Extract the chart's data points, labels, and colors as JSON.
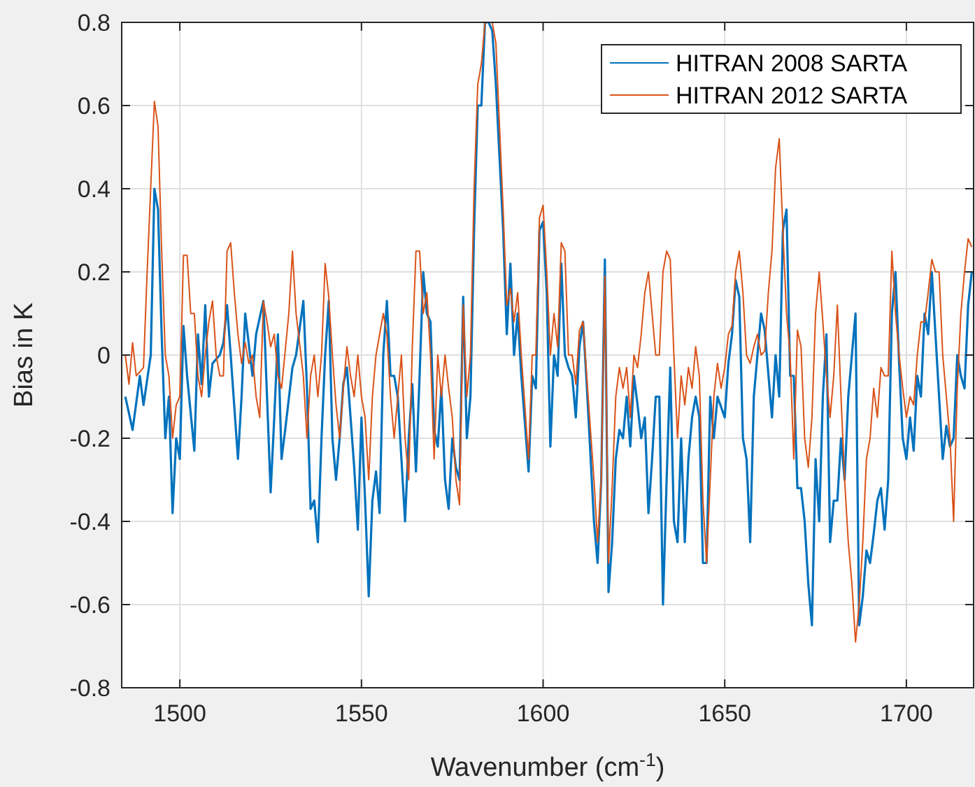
{
  "chart_data": {
    "type": "line",
    "xlabel": "Wavenumber (cm$^{-1}$)",
    "ylabel": "Bias in K",
    "xlim": [
      1484,
      1718.5
    ],
    "ylim": [
      -0.8,
      0.8
    ],
    "xticks": [
      1500,
      1550,
      1600,
      1650,
      1700
    ],
    "yticks": [
      -0.8,
      -0.6,
      -0.4,
      -0.2,
      0,
      0.2,
      0.4,
      0.6,
      0.8
    ],
    "grid": true,
    "legend": "top right",
    "line_style": "solid",
    "marker": "none",
    "series": [
      {
        "name": "HITRAN 2008 SARTA",
        "color": "#0072bd",
        "x": [
          1485,
          1487,
          1489,
          1490,
          1492,
          1493,
          1494,
          1495,
          1496,
          1497,
          1498,
          1499,
          1500,
          1501,
          1502,
          1504,
          1505,
          1506,
          1507,
          1508,
          1509,
          1511,
          1512,
          1513,
          1514,
          1516,
          1517,
          1518,
          1520,
          1521,
          1523,
          1525,
          1526,
          1527,
          1528,
          1529,
          1531,
          1532,
          1534,
          1535,
          1536,
          1537,
          1538,
          1539,
          1540,
          1541,
          1542,
          1543,
          1544,
          1545,
          1546,
          1548,
          1549,
          1550,
          1551,
          1552,
          1553,
          1554,
          1555,
          1556,
          1557,
          1558,
          1559,
          1560,
          1561,
          1562,
          1563,
          1564,
          1565,
          1566,
          1567,
          1568,
          1569,
          1570,
          1571,
          1572,
          1573,
          1574,
          1575,
          1576,
          1577,
          1578,
          1579,
          1580,
          1581,
          1582,
          1583,
          1584,
          1585,
          1586,
          1587,
          1589,
          1590,
          1591,
          1592,
          1593,
          1594,
          1596,
          1597,
          1598,
          1599,
          1600,
          1601,
          1602,
          1603,
          1604,
          1605,
          1606,
          1607,
          1608,
          1609,
          1610,
          1611,
          1612,
          1614,
          1615,
          1616,
          1617,
          1618,
          1619,
          1620,
          1621,
          1622,
          1623,
          1624,
          1625,
          1626,
          1627,
          1628,
          1629,
          1630,
          1631,
          1632,
          1633,
          1634,
          1635,
          1636,
          1637,
          1638,
          1639,
          1640,
          1641,
          1642,
          1643,
          1644,
          1645,
          1646,
          1647,
          1648,
          1650,
          1651,
          1652,
          1653,
          1654,
          1655,
          1656,
          1657,
          1658,
          1660,
          1661,
          1663,
          1664,
          1665,
          1666,
          1667,
          1668,
          1669,
          1670,
          1671,
          1672,
          1673,
          1674,
          1675,
          1676,
          1677,
          1678,
          1679,
          1680,
          1681,
          1682,
          1683,
          1684,
          1686,
          1687,
          1688,
          1689,
          1690,
          1691,
          1692,
          1693,
          1694,
          1695,
          1696,
          1697,
          1698,
          1699,
          1700,
          1701,
          1702,
          1703,
          1704,
          1705,
          1706,
          1707,
          1708,
          1710,
          1711,
          1712,
          1713,
          1714,
          1715,
          1716,
          1717,
          1718
        ],
        "values": [
          -0.1,
          -0.18,
          -0.05,
          -0.12,
          0.0,
          0.4,
          0.35,
          0.05,
          -0.2,
          -0.1,
          -0.38,
          -0.2,
          -0.25,
          0.07,
          -0.05,
          -0.23,
          0.05,
          -0.07,
          0.12,
          -0.1,
          -0.02,
          0.0,
          0.03,
          0.12,
          0.0,
          -0.25,
          -0.1,
          0.1,
          -0.05,
          0.05,
          0.13,
          -0.33,
          -0.15,
          0.05,
          -0.25,
          -0.18,
          -0.03,
          0.0,
          0.13,
          -0.08,
          -0.37,
          -0.35,
          -0.45,
          -0.2,
          0.0,
          0.13,
          -0.2,
          -0.3,
          -0.2,
          -0.07,
          -0.03,
          -0.27,
          -0.42,
          -0.15,
          -0.35,
          -0.58,
          -0.35,
          -0.28,
          -0.38,
          0.0,
          0.13,
          -0.05,
          -0.05,
          -0.1,
          -0.25,
          -0.4,
          -0.2,
          -0.07,
          -0.28,
          -0.05,
          0.2,
          0.1,
          0.08,
          -0.18,
          -0.22,
          -0.08,
          -0.3,
          -0.37,
          -0.2,
          -0.27,
          -0.3,
          0.14,
          -0.2,
          -0.1,
          0.3,
          0.6,
          0.6,
          0.8,
          0.8,
          0.78,
          0.65,
          0.3,
          0.05,
          0.22,
          0.0,
          0.1,
          -0.05,
          -0.28,
          -0.05,
          -0.08,
          0.3,
          0.32,
          0.15,
          -0.22,
          0.0,
          -0.05,
          0.22,
          0.0,
          -0.03,
          -0.05,
          -0.15,
          0.02,
          0.08,
          -0.07,
          -0.4,
          -0.5,
          -0.3,
          0.23,
          -0.57,
          -0.45,
          -0.25,
          -0.18,
          -0.2,
          -0.1,
          -0.22,
          -0.05,
          -0.12,
          -0.2,
          -0.15,
          -0.38,
          -0.25,
          -0.1,
          -0.1,
          -0.6,
          -0.3,
          -0.03,
          -0.4,
          -0.45,
          -0.2,
          -0.45,
          -0.25,
          -0.15,
          -0.1,
          -0.15,
          -0.5,
          -0.5,
          -0.1,
          -0.2,
          -0.1,
          -0.15,
          -0.02,
          0.05,
          0.18,
          0.14,
          -0.2,
          -0.25,
          -0.45,
          -0.1,
          0.1,
          0.06,
          -0.15,
          0.0,
          -0.1,
          0.3,
          0.35,
          -0.05,
          -0.05,
          -0.32,
          -0.32,
          -0.4,
          -0.55,
          -0.65,
          -0.25,
          -0.4,
          -0.1,
          0.05,
          -0.45,
          -0.35,
          -0.35,
          -0.2,
          -0.3,
          -0.1,
          0.1,
          -0.65,
          -0.58,
          -0.47,
          -0.5,
          -0.43,
          -0.35,
          -0.32,
          -0.42,
          -0.3,
          0.1,
          0.2,
          -0.02,
          -0.2,
          -0.25,
          -0.15,
          -0.23,
          -0.05,
          -0.1,
          0.1,
          0.05,
          0.2,
          0.05,
          -0.25,
          -0.17,
          -0.22,
          -0.2,
          0.0,
          -0.05,
          -0.08,
          0.12,
          0.2
        ]
      },
      {
        "name": "HITRAN 2012 SARTA",
        "color": "#d95319",
        "x": [
          1485,
          1486,
          1487,
          1488,
          1490,
          1491,
          1493,
          1494,
          1495,
          1496,
          1497,
          1498,
          1499,
          1500,
          1501,
          1502,
          1503,
          1504,
          1505,
          1506,
          1507,
          1508,
          1509,
          1510,
          1511,
          1512,
          1513,
          1514,
          1515,
          1516,
          1517,
          1518,
          1519,
          1520,
          1521,
          1522,
          1523,
          1524,
          1525,
          1526,
          1527,
          1528,
          1530,
          1531,
          1532,
          1534,
          1535,
          1536,
          1537,
          1538,
          1539,
          1540,
          1541,
          1542,
          1543,
          1544,
          1545,
          1546,
          1547,
          1548,
          1549,
          1550,
          1551,
          1552,
          1553,
          1554,
          1555,
          1556,
          1557,
          1558,
          1559,
          1560,
          1561,
          1562,
          1563,
          1564,
          1565,
          1566,
          1567,
          1568,
          1569,
          1570,
          1571,
          1572,
          1573,
          1574,
          1575,
          1576,
          1577,
          1578,
          1579,
          1580,
          1581,
          1582,
          1583,
          1584,
          1586,
          1587,
          1589,
          1590,
          1591,
          1592,
          1593,
          1594,
          1596,
          1597,
          1598,
          1599,
          1600,
          1601,
          1602,
          1603,
          1604,
          1605,
          1606,
          1607,
          1608,
          1609,
          1610,
          1611,
          1612,
          1614,
          1615,
          1616,
          1617,
          1618,
          1619,
          1620,
          1621,
          1622,
          1623,
          1624,
          1625,
          1626,
          1627,
          1628,
          1629,
          1630,
          1631,
          1632,
          1633,
          1634,
          1635,
          1636,
          1637,
          1638,
          1639,
          1640,
          1641,
          1642,
          1643,
          1644,
          1645,
          1646,
          1647,
          1648,
          1649,
          1650,
          1651,
          1652,
          1653,
          1654,
          1655,
          1656,
          1657,
          1658,
          1659,
          1660,
          1661,
          1662,
          1663,
          1664,
          1665,
          1666,
          1667,
          1668,
          1669,
          1670,
          1671,
          1672,
          1673,
          1674,
          1675,
          1676,
          1677,
          1678,
          1679,
          1680,
          1681,
          1682,
          1683,
          1684,
          1685,
          1686,
          1687,
          1688,
          1689,
          1690,
          1691,
          1692,
          1693,
          1694,
          1695,
          1696,
          1697,
          1698,
          1699,
          1700,
          1701,
          1702,
          1703,
          1704,
          1705,
          1706,
          1707,
          1708,
          1709,
          1710,
          1711,
          1712,
          1713,
          1714,
          1715,
          1716,
          1717,
          1718
        ],
        "values": [
          0.0,
          -0.07,
          0.03,
          -0.05,
          -0.03,
          0.2,
          0.61,
          0.55,
          0.25,
          0.0,
          -0.05,
          -0.2,
          -0.12,
          -0.1,
          0.24,
          0.24,
          0.1,
          0.1,
          -0.05,
          -0.1,
          0.0,
          0.08,
          0.13,
          0.0,
          -0.05,
          -0.05,
          0.25,
          0.27,
          0.15,
          0.05,
          -0.02,
          0.03,
          -0.02,
          0.0,
          -0.1,
          -0.15,
          0.13,
          0.08,
          0.02,
          0.05,
          -0.05,
          -0.08,
          0.1,
          0.25,
          0.1,
          -0.05,
          -0.2,
          -0.05,
          0.0,
          -0.1,
          0.0,
          0.22,
          0.14,
          0.0,
          -0.12,
          -0.2,
          -0.08,
          0.02,
          -0.05,
          -0.1,
          0.0,
          -0.1,
          -0.15,
          -0.3,
          -0.1,
          0.0,
          0.05,
          0.1,
          0.05,
          -0.1,
          -0.2,
          -0.1,
          0.0,
          -0.2,
          -0.3,
          0.02,
          0.25,
          0.25,
          0.1,
          0.15,
          0.0,
          -0.25,
          0.0,
          -0.1,
          0.0,
          -0.08,
          -0.15,
          -0.3,
          -0.36,
          0.12,
          -0.1,
          0.0,
          0.4,
          0.65,
          0.7,
          0.8,
          0.8,
          0.75,
          0.35,
          0.12,
          0.16,
          0.08,
          0.15,
          0.0,
          -0.25,
          0.0,
          0.0,
          0.33,
          0.36,
          0.2,
          0.0,
          0.1,
          0.02,
          0.27,
          0.25,
          0.0,
          0.0,
          -0.07,
          0.06,
          0.08,
          -0.05,
          -0.3,
          -0.45,
          -0.3,
          0.19,
          -0.5,
          -0.32,
          -0.1,
          -0.03,
          -0.08,
          -0.03,
          -0.15,
          0.0,
          -0.03,
          0.05,
          0.15,
          0.2,
          0.1,
          0.0,
          0.0,
          0.2,
          0.25,
          0.23,
          0.0,
          -0.2,
          -0.05,
          -0.12,
          -0.03,
          -0.08,
          0.02,
          -0.05,
          -0.35,
          -0.5,
          -0.3,
          -0.1,
          -0.02,
          -0.08,
          -0.03,
          0.05,
          0.07,
          0.2,
          0.25,
          0.15,
          0.0,
          -0.02,
          0.02,
          0.05,
          0.0,
          0.01,
          0.15,
          0.25,
          0.45,
          0.52,
          0.3,
          0.1,
          0.0,
          -0.25,
          0.06,
          0.02,
          -0.2,
          -0.27,
          -0.15,
          0.1,
          0.2,
          0.08,
          -0.05,
          -0.15,
          -0.05,
          0.12,
          -0.1,
          -0.3,
          -0.45,
          -0.55,
          -0.69,
          -0.6,
          -0.45,
          -0.25,
          -0.2,
          -0.08,
          -0.15,
          -0.03,
          -0.05,
          -0.05,
          0.25,
          0.1,
          0.0,
          -0.08,
          -0.15,
          -0.1,
          -0.12,
          0.0,
          0.08,
          0.08,
          0.15,
          0.23,
          0.2,
          0.2,
          0.0,
          -0.1,
          -0.2,
          -0.4,
          -0.08,
          0.1,
          0.2,
          0.28,
          0.26
        ]
      }
    ]
  }
}
